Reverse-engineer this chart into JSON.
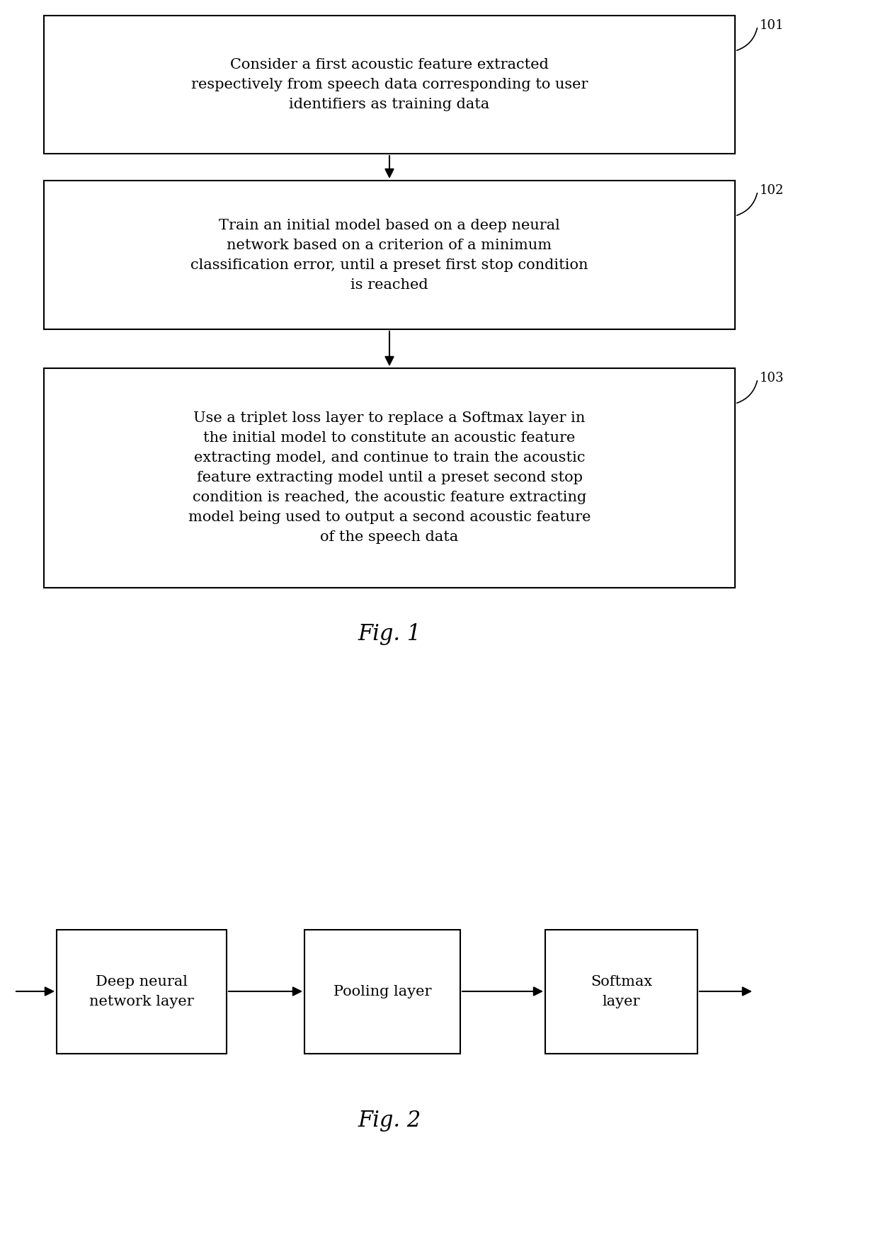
{
  "fig1_title": "Fig. 1",
  "fig2_title": "Fig. 2",
  "background_color": "#ffffff",
  "box_edgecolor": "#000000",
  "box_facecolor": "#ffffff",
  "text_color": "#000000",
  "arrow_color": "#000000",
  "box1_text": "Consider a first acoustic feature extracted\nrespectively from speech data corresponding to user\nidentifiers as training data",
  "box2_text": "Train an initial model based on a deep neural\nnetwork based on a criterion of a minimum\nclassification error, until a preset first stop condition\nis reached",
  "box3_text": "Use a triplet loss layer to replace a Softmax layer in\nthe initial model to constitute an acoustic feature\nextracting model, and continue to train the acoustic\nfeature extracting model until a preset second stop\ncondition is reached, the acoustic feature extracting\nmodel being used to output a second acoustic feature\nof the speech data",
  "label1": "101",
  "label2": "102",
  "label3": "103",
  "fig2_box1_text": "Deep neural\nnetwork layer",
  "fig2_box2_text": "Pooling layer",
  "fig2_box3_text": "Softmax\nlayer",
  "line_width": 1.5,
  "font_size_box": 15,
  "font_size_label": 13,
  "font_size_fig": 22,
  "font_size_fig2_box": 15
}
